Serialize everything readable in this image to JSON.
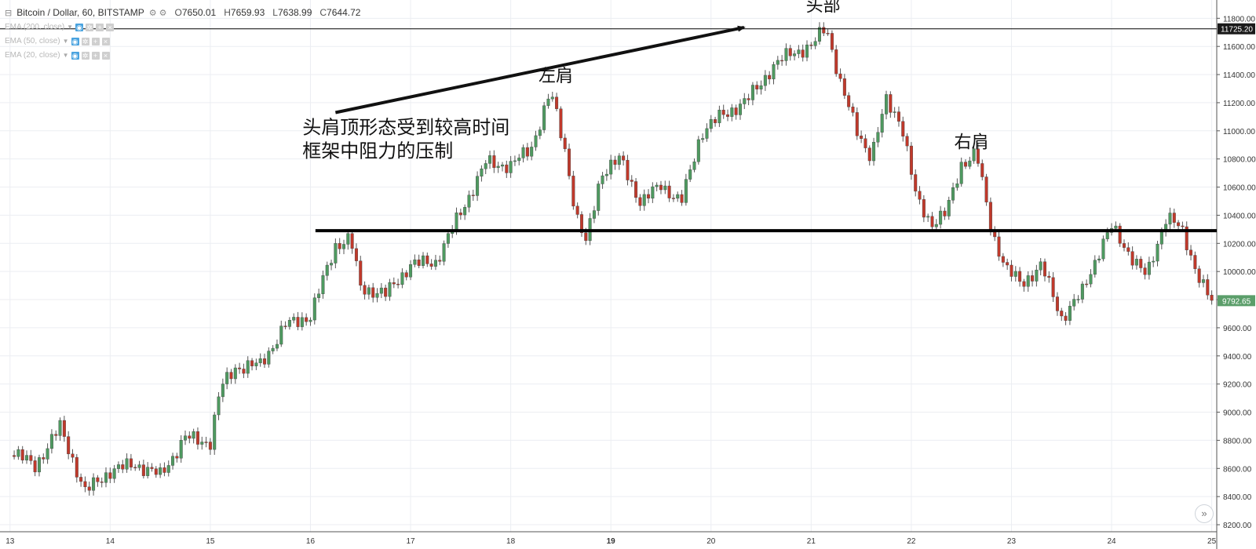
{
  "legend": {
    "symbol": "Bitcoin / Dollar, 60, BITSTAMP",
    "open_label": "O",
    "open": "7650.01",
    "high_label": "H",
    "high": "7659.93",
    "low_label": "L",
    "low": "7638.99",
    "close_label": "C",
    "close": "7644.72"
  },
  "indicators": [
    {
      "label": "EMA (200, close)"
    },
    {
      "label": "EMA (50, close)"
    },
    {
      "label": "EMA (20, close)"
    }
  ],
  "icons": {
    "collapse": "collapse-square-icon",
    "eye": "eye-icon",
    "settings": "gear-icon",
    "add": "plus-icon",
    "remove": "close-icon",
    "scroll": "double-chevron-right-icon"
  },
  "colors": {
    "up": "#4e9a60",
    "down": "#c0392b",
    "price_badge": "#5b9e6a",
    "crosshair_badge": "#1a1a1a"
  },
  "chart_data": {
    "type": "candlestick",
    "x_ticks": [
      "13",
      "14",
      "15",
      "16",
      "17",
      "18",
      "19",
      "20",
      "21",
      "22",
      "23",
      "24",
      "25"
    ],
    "y_ticks": [
      8200,
      8400,
      8600,
      8800,
      9000,
      9200,
      9400,
      9600,
      9800,
      10000,
      10200,
      10400,
      10600,
      10800,
      11000,
      11200,
      11400,
      11600,
      11800
    ],
    "y_tick_labels": [
      "8200.00",
      "8400.00",
      "8600.00",
      "8800.00",
      "9000.00",
      "9200.00",
      "9400.00",
      "9600.00",
      "9800.00",
      "10000.00",
      "10200.00",
      "10400.00",
      "10600.00",
      "10800.00",
      "11000.00",
      "11200.00",
      "11400.00",
      "11600.00",
      "11800.00"
    ],
    "ylim": [
      8150,
      11930
    ],
    "x_range": [
      12.9,
      25.05
    ],
    "grid": true,
    "closes": [
      [
        13.0,
        8730
      ],
      [
        13.25,
        8620
      ],
      [
        13.5,
        8900
      ],
      [
        13.75,
        8440
      ],
      [
        14.0,
        8590
      ],
      [
        14.25,
        8640
      ],
      [
        14.5,
        8560
      ],
      [
        14.75,
        8830
      ],
      [
        15.0,
        8800
      ],
      [
        15.1,
        9180
      ],
      [
        15.25,
        9330
      ],
      [
        15.5,
        9350
      ],
      [
        15.75,
        9630
      ],
      [
        16.0,
        9700
      ],
      [
        16.25,
        10200
      ],
      [
        16.4,
        10250
      ],
      [
        16.5,
        9900
      ],
      [
        16.75,
        9850
      ],
      [
        17.0,
        10060
      ],
      [
        17.25,
        10080
      ],
      [
        17.5,
        10430
      ],
      [
        17.75,
        10780
      ],
      [
        18.0,
        10760
      ],
      [
        18.2,
        10880
      ],
      [
        18.4,
        11280
      ],
      [
        18.55,
        10850
      ],
      [
        18.65,
        10400
      ],
      [
        18.75,
        10200
      ],
      [
        18.9,
        10700
      ],
      [
        19.1,
        10800
      ],
      [
        19.3,
        10480
      ],
      [
        19.5,
        10620
      ],
      [
        19.7,
        10480
      ],
      [
        19.9,
        10980
      ],
      [
        20.1,
        11100
      ],
      [
        20.35,
        11200
      ],
      [
        20.6,
        11430
      ],
      [
        20.8,
        11550
      ],
      [
        21.0,
        11580
      ],
      [
        21.15,
        11740
      ],
      [
        21.3,
        11300
      ],
      [
        21.45,
        11000
      ],
      [
        21.6,
        10800
      ],
      [
        21.75,
        11200
      ],
      [
        21.9,
        11050
      ],
      [
        22.05,
        10500
      ],
      [
        22.2,
        10330
      ],
      [
        22.35,
        10400
      ],
      [
        22.5,
        10750
      ],
      [
        22.65,
        10830
      ],
      [
        22.8,
        10280
      ],
      [
        22.95,
        10000
      ],
      [
        23.1,
        9900
      ],
      [
        23.3,
        10030
      ],
      [
        23.5,
        9660
      ],
      [
        23.7,
        9830
      ],
      [
        23.9,
        10180
      ],
      [
        24.0,
        10300
      ],
      [
        24.2,
        10100
      ],
      [
        24.35,
        9950
      ],
      [
        24.55,
        10400
      ],
      [
        24.7,
        10280
      ],
      [
        24.85,
        10000
      ],
      [
        25.0,
        9770
      ]
    ]
  },
  "overlays": {
    "resistance_level": 10290,
    "crosshair_label": "11725.20",
    "crosshair_value": 11725.2,
    "last_price_label": "9792.65",
    "last_price_value": 9792.65,
    "trend_arrow": {
      "from": [
        16.25,
        11130
      ],
      "to": [
        20.33,
        11735
      ]
    },
    "text_annotation_lines": [
      "头肩顶形态受到较高时间",
      "框架中阻力的压制"
    ],
    "labels": [
      {
        "text": "左肩",
        "x": 18.45,
        "y": 11350
      },
      {
        "text": "头部",
        "x": 21.12,
        "y": 11850
      },
      {
        "text": "右肩",
        "x": 22.6,
        "y": 10880
      }
    ]
  }
}
